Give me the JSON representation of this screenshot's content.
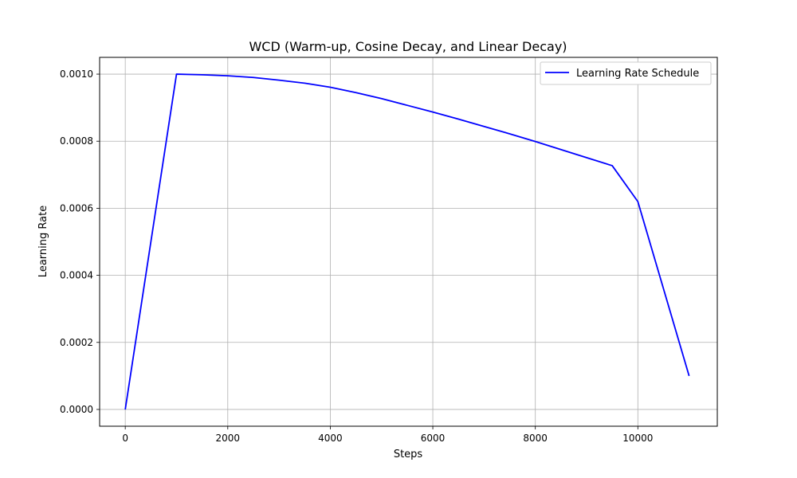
{
  "chart_data": {
    "type": "line",
    "title": "WCD (Warm-up, Cosine Decay, and Linear Decay)",
    "xlabel": "Steps",
    "ylabel": "Learning Rate",
    "xlim": [
      -500,
      11550
    ],
    "ylim": [
      -5e-05,
      0.00105
    ],
    "xticks": [
      0,
      2000,
      4000,
      6000,
      8000,
      10000
    ],
    "xtick_labels": [
      "0",
      "2000",
      "4000",
      "6000",
      "8000",
      "10000"
    ],
    "yticks": [
      0,
      0.0002,
      0.0004,
      0.0006,
      0.0008,
      0.001
    ],
    "ytick_labels": [
      "0.0000",
      "0.0002",
      "0.0004",
      "0.0006",
      "0.0008",
      "0.0010"
    ],
    "grid": true,
    "legend_position": "upper-right",
    "series": [
      {
        "name": "Learning Rate Schedule",
        "color": "#0000ff",
        "x": [
          0,
          1000,
          1500,
          2000,
          2500,
          3000,
          3500,
          4000,
          4500,
          5000,
          5500,
          6000,
          6500,
          7000,
          7500,
          8000,
          8500,
          9000,
          9500,
          10000,
          11000
        ],
        "y": [
          0,
          0.001,
          0.000998,
          0.000995,
          0.00099,
          0.000982,
          0.000973,
          0.000961,
          0.000945,
          0.000927,
          0.000907,
          0.000887,
          0.000866,
          0.000844,
          0.000822,
          0.000799,
          0.000775,
          0.000751,
          0.000727,
          0.00062,
          0.0001
        ]
      }
    ]
  }
}
